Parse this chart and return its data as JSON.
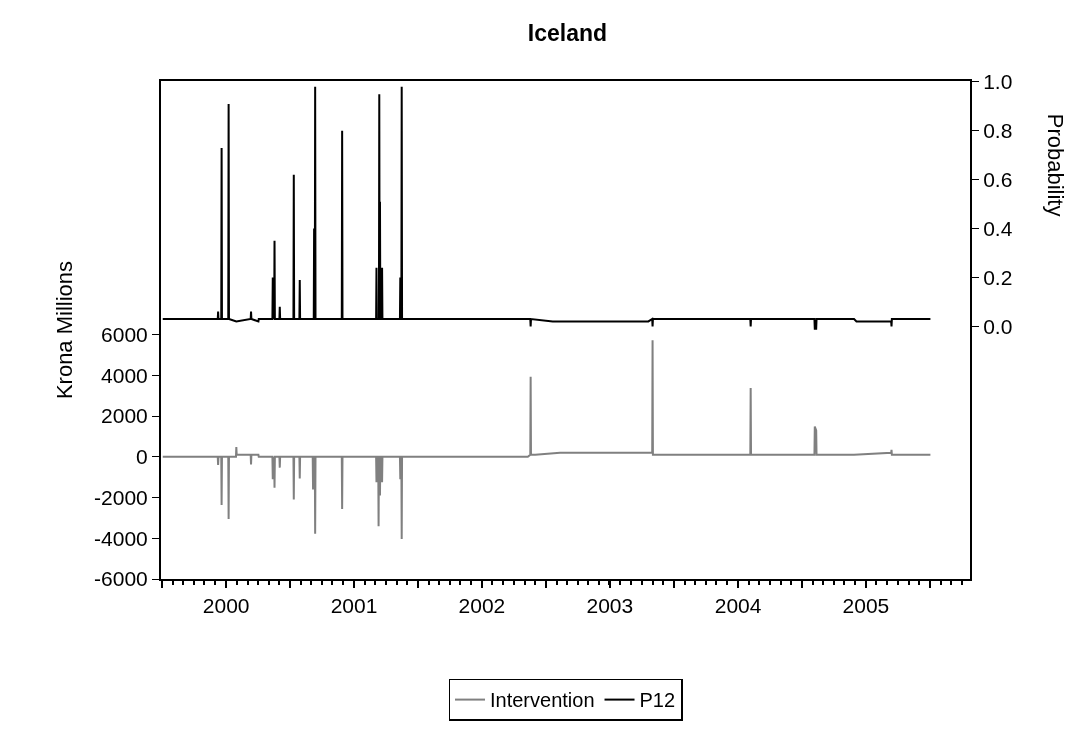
{
  "chart_data": {
    "type": "line",
    "title": "Iceland",
    "ylabel": "Krona Millions",
    "y2label": "Probability",
    "xlim": [
      "1999-12-29",
      "2006-04-25"
    ],
    "xticks": [
      {
        "value": "2000-01-01",
        "label": null
      },
      {
        "value": "2000-07-02",
        "label": "2000"
      },
      {
        "value": "2001-01-01",
        "label": null
      },
      {
        "value": "2001-07-02",
        "label": "2001"
      },
      {
        "value": "2002-01-01",
        "label": null
      },
      {
        "value": "2002-07-02",
        "label": "2002"
      },
      {
        "value": "2003-01-01",
        "label": null
      },
      {
        "value": "2003-07-02",
        "label": "2003"
      },
      {
        "value": "2004-01-01",
        "label": null
      },
      {
        "value": "2004-07-02",
        "label": "2004"
      },
      {
        "value": "2005-01-01",
        "label": null
      },
      {
        "value": "2005-07-02",
        "label": "2005"
      },
      {
        "value": "2006-01-01",
        "label": null
      }
    ],
    "ylim": [
      -6000,
      18460
    ],
    "yticks": [
      -6000,
      -4000,
      -2000,
      0,
      2000,
      4000,
      6000
    ],
    "y2lim": [
      -1.034,
      1.004
    ],
    "y2ticks": [
      {
        "value": 0,
        "label": "0.0"
      },
      {
        "value": 0.2,
        "label": "0.2"
      },
      {
        "value": 0.4,
        "label": "0.4"
      },
      {
        "value": 0.6,
        "label": "0.6"
      },
      {
        "value": 0.8,
        "label": "0.8"
      },
      {
        "value": 1,
        "label": "1.0"
      }
    ],
    "legend": "bottom",
    "marker": "none",
    "line_style": "solid",
    "series": [
      {
        "name": "Intervention",
        "color": "#808080",
        "x": [
          "2000-01-03",
          "2000-06-08",
          "2000-06-09",
          "2000-06-10",
          "2000-06-18",
          "2000-06-19",
          "2000-06-20",
          "2000-07-08",
          "2000-07-09",
          "2000-07-10",
          "2000-07-30",
          "2000-07-31",
          "2000-08-01",
          "2000-09-10",
          "2000-09-11",
          "2000-09-12",
          "2000-10-02",
          "2000-10-03",
          "2000-11-11",
          "2000-11-12",
          "2000-11-16",
          "2000-11-17",
          "2000-11-18",
          "2000-12-01",
          "2000-12-02",
          "2000-12-03",
          "2001-01-10",
          "2001-01-11",
          "2001-01-12",
          "2001-01-27",
          "2001-01-28",
          "2001-01-29",
          "2001-03-06",
          "2001-03-07",
          "2001-03-08",
          "2001-03-12",
          "2001-03-13",
          "2001-03-14",
          "2001-05-28",
          "2001-05-29",
          "2001-05-30",
          "2001-09-03",
          "2001-09-04",
          "2001-09-05",
          "2001-09-09",
          "2001-09-10",
          "2001-09-11",
          "2001-09-13",
          "2001-09-14",
          "2001-09-15",
          "2001-09-19",
          "2001-09-20",
          "2001-09-21",
          "2001-11-10",
          "2001-11-11",
          "2001-11-12",
          "2001-11-14",
          "2001-11-15",
          "2001-11-16",
          "2002-11-10",
          "2002-11-17",
          "2002-11-18",
          "2002-11-19",
          "2002-12-01",
          "2003-02-10",
          "2003-10-31",
          "2003-11-01",
          "2003-11-02",
          "2004-08-06",
          "2004-08-07",
          "2004-08-08",
          "2005-02-05",
          "2005-02-06",
          "2005-02-10",
          "2005-02-11",
          "2005-05-29",
          "2005-09-12",
          "2005-09-13",
          "2005-09-14",
          "2006-01-02"
        ],
        "values": [
          0,
          0,
          -400,
          0,
          0,
          -2360,
          0,
          0,
          -3050,
          0,
          0,
          480,
          100,
          100,
          -370,
          100,
          100,
          0,
          0,
          -1100,
          0,
          -1520,
          0,
          0,
          -530,
          0,
          0,
          -2100,
          0,
          0,
          -1060,
          0,
          0,
          -1600,
          0,
          0,
          -3780,
          0,
          0,
          -2560,
          0,
          0,
          -1250,
          0,
          0,
          -3410,
          0,
          0,
          -1900,
          0,
          0,
          -1250,
          0,
          0,
          -1100,
          0,
          0,
          -4040,
          0,
          0,
          100,
          3930,
          100,
          100,
          200,
          200,
          5730,
          100,
          100,
          3380,
          100,
          100,
          1490,
          1300,
          100,
          100,
          200,
          340,
          100,
          100
        ]
      },
      {
        "name": "P12",
        "color": "#000000",
        "axis": "y2",
        "x": [
          "2000-01-03",
          "2000-06-08",
          "2000-06-09",
          "2000-06-10",
          "2000-06-18",
          "2000-06-19",
          "2000-06-20",
          "2000-07-08",
          "2000-07-09",
          "2000-07-10",
          "2000-07-31",
          "2000-09-10",
          "2000-09-11",
          "2000-09-12",
          "2000-10-02",
          "2000-10-03",
          "2000-11-11",
          "2000-11-12",
          "2000-11-16",
          "2000-11-17",
          "2000-11-18",
          "2000-12-01",
          "2000-12-02",
          "2000-12-03",
          "2001-01-10",
          "2001-01-11",
          "2001-01-12",
          "2001-01-27",
          "2001-01-28",
          "2001-01-29",
          "2001-03-09",
          "2001-03-10",
          "2001-03-12",
          "2001-03-13",
          "2001-03-14",
          "2001-05-28",
          "2001-05-29",
          "2001-05-30",
          "2001-09-03",
          "2001-09-04",
          "2001-09-05",
          "2001-09-11",
          "2001-09-12",
          "2001-09-13",
          "2001-09-14",
          "2001-09-15",
          "2001-09-19",
          "2001-09-20",
          "2001-09-21",
          "2001-11-10",
          "2001-11-11",
          "2001-11-12",
          "2001-11-14",
          "2001-11-15",
          "2001-11-16",
          "2002-11-17",
          "2002-11-18",
          "2002-11-19",
          "2003-01-20",
          "2003-10-20",
          "2003-10-31",
          "2003-11-01",
          "2003-11-02",
          "2004-08-06",
          "2004-08-07",
          "2004-08-08",
          "2005-02-05",
          "2005-02-06",
          "2005-02-10",
          "2005-02-11",
          "2005-05-29",
          "2005-06-05",
          "2005-09-12",
          "2005-09-13",
          "2005-09-14",
          "2006-01-02"
        ],
        "values": [
          0.03,
          0.03,
          0.06,
          0.03,
          0.03,
          0.73,
          0.03,
          0.03,
          0.91,
          0.03,
          0.02,
          0.03,
          0.06,
          0.03,
          0.02,
          0.03,
          0.03,
          0.2,
          0.03,
          0.35,
          0.03,
          0.03,
          0.08,
          0.03,
          0.03,
          0.62,
          0.03,
          0.03,
          0.19,
          0.03,
          0.03,
          0.4,
          0.03,
          0.98,
          0.03,
          0.03,
          0.8,
          0.03,
          0.03,
          0.24,
          0.03,
          0.03,
          0.95,
          0.03,
          0.51,
          0.03,
          0.03,
          0.24,
          0.03,
          0.03,
          0.2,
          0.03,
          0.03,
          0.98,
          0.03,
          0.03,
          0.0,
          0.03,
          0.02,
          0.02,
          0.03,
          0.0,
          0.03,
          0.03,
          0.0,
          0.03,
          0.03,
          -0.01,
          -0.01,
          0.03,
          0.03,
          0.02,
          0.02,
          0.0,
          0.03,
          0.03
        ]
      }
    ]
  }
}
